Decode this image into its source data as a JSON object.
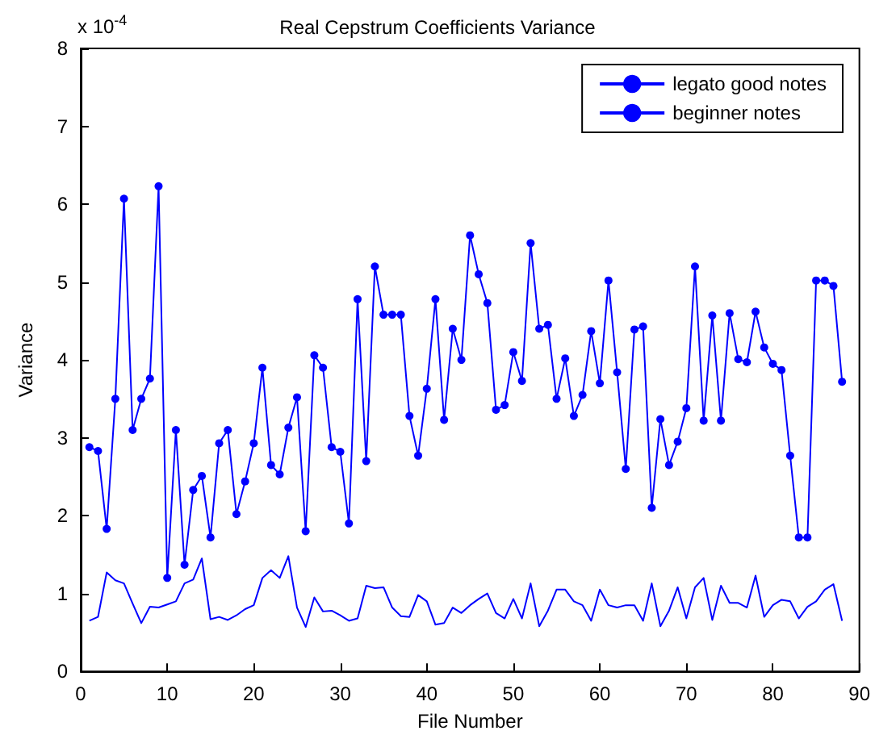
{
  "chart_data": {
    "type": "line",
    "title": "Real Cepstrum Coefficients Variance",
    "xlabel": "File Number",
    "ylabel": "Variance",
    "annotations": [
      "x 10$^{-4}$"
    ],
    "xlim": [
      0,
      90
    ],
    "xticks": [
      0,
      10,
      20,
      30,
      40,
      50,
      60,
      70,
      80,
      90
    ],
    "ylim": [
      0,
      8
    ],
    "yticks": [
      0,
      1,
      2,
      3,
      4,
      5,
      6,
      7,
      8
    ],
    "grid": false,
    "legend": "top right",
    "x": [
      1,
      2,
      3,
      4,
      5,
      6,
      7,
      8,
      9,
      10,
      11,
      12,
      13,
      14,
      15,
      16,
      17,
      18,
      19,
      20,
      21,
      22,
      23,
      24,
      25,
      26,
      27,
      28,
      29,
      30,
      31,
      32,
      33,
      34,
      35,
      36,
      37,
      38,
      39,
      40,
      41,
      42,
      43,
      44,
      45,
      46,
      47,
      48,
      49,
      50,
      51,
      52,
      53,
      54,
      55,
      56,
      57,
      58,
      59,
      60,
      61,
      62,
      63,
      64,
      65,
      66,
      67,
      68,
      69,
      70,
      71,
      72,
      73,
      74,
      75,
      76,
      77,
      78,
      79,
      80,
      81,
      82,
      83,
      84,
      85,
      86,
      87,
      88
    ],
    "series": [
      {
        "name": "legato good notes",
        "color": "#0000ff",
        "marker": "none",
        "values": [
          0.65,
          0.7,
          1.27,
          1.17,
          1.13,
          0.87,
          0.62,
          0.83,
          0.82,
          0.86,
          0.9,
          1.13,
          1.18,
          1.45,
          0.67,
          0.7,
          0.66,
          0.72,
          0.8,
          0.85,
          1.2,
          1.3,
          1.2,
          1.48,
          0.82,
          0.57,
          0.95,
          0.77,
          0.78,
          0.72,
          0.65,
          0.68,
          1.1,
          1.07,
          1.08,
          0.82,
          0.71,
          0.7,
          0.98,
          0.9,
          0.6,
          0.62,
          0.82,
          0.75,
          0.85,
          0.93,
          1.0,
          0.75,
          0.68,
          0.93,
          0.68,
          1.13,
          0.58,
          0.78,
          1.05,
          1.05,
          0.9,
          0.85,
          0.65,
          1.05,
          0.85,
          0.82,
          0.85,
          0.85,
          0.65,
          1.13,
          0.58,
          0.78,
          1.08,
          0.68,
          1.08,
          1.2,
          0.66,
          1.1,
          0.88,
          0.88,
          0.82,
          1.23,
          0.7,
          0.85,
          0.92,
          0.9,
          0.68,
          0.83,
          0.9,
          1.05,
          1.12,
          0.65
        ]
      },
      {
        "name": "beginner notes",
        "color": "#0000ff",
        "marker": "circle",
        "values": [
          2.88,
          2.83,
          1.83,
          3.5,
          6.07,
          3.1,
          3.5,
          3.76,
          6.23,
          1.2,
          3.1,
          1.37,
          2.33,
          2.51,
          1.72,
          2.93,
          3.1,
          2.02,
          2.44,
          2.93,
          3.9,
          2.65,
          2.53,
          3.13,
          3.52,
          1.8,
          4.06,
          3.9,
          2.88,
          2.82,
          1.9,
          4.78,
          2.7,
          5.2,
          4.58,
          4.58,
          4.58,
          3.28,
          2.77,
          3.63,
          4.78,
          3.23,
          4.4,
          4.0,
          5.6,
          5.1,
          4.73,
          3.36,
          3.42,
          4.1,
          3.73,
          5.5,
          4.4,
          4.45,
          3.5,
          4.02,
          3.28,
          3.55,
          4.37,
          3.7,
          5.02,
          3.84,
          2.6,
          4.39,
          4.43,
          2.1,
          3.24,
          2.65,
          2.95,
          3.38,
          5.2,
          3.22,
          4.57,
          3.22,
          4.6,
          4.01,
          3.97,
          4.62,
          4.16,
          3.95,
          3.87,
          2.77,
          1.72,
          1.72,
          5.02,
          5.02,
          4.95,
          3.72
        ]
      }
    ]
  }
}
